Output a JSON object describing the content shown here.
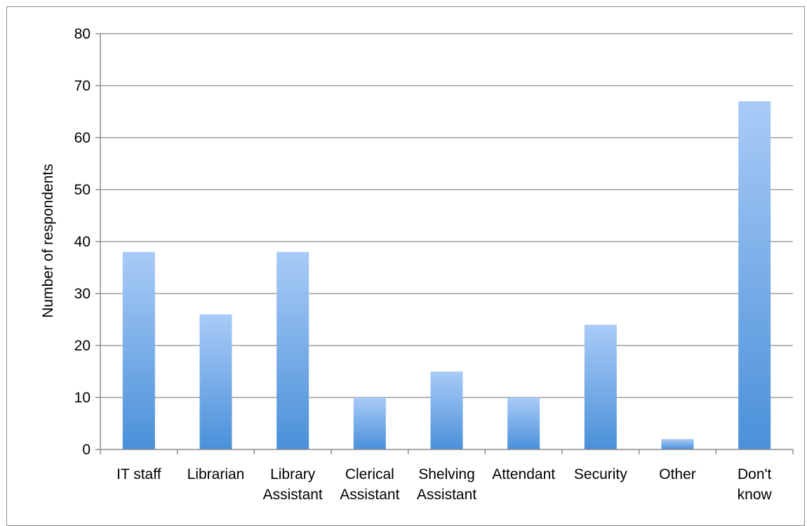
{
  "chart_data": {
    "type": "bar",
    "title": "",
    "xlabel": "",
    "ylabel": "Number of respondents",
    "ylim": [
      0,
      80
    ],
    "yticks": [
      0,
      10,
      20,
      30,
      40,
      50,
      60,
      70,
      80
    ],
    "grid": true,
    "legend": "none",
    "categories": [
      [
        "IT staff"
      ],
      [
        "Librarian"
      ],
      [
        "Library",
        "Assistant"
      ],
      [
        "Clerical",
        "Assistant"
      ],
      [
        "Shelving",
        "Assistant"
      ],
      [
        "Attendant"
      ],
      [
        "Security"
      ],
      [
        "Other"
      ],
      [
        "Don't",
        "know"
      ]
    ],
    "values": [
      38,
      26,
      38,
      10,
      15,
      10,
      24,
      2,
      67
    ],
    "colors": {
      "bar_top": "#a9cbf7",
      "bar_bottom": "#4a90d9",
      "grid": "#8c8c8c",
      "axis": "#8c8c8c"
    }
  }
}
